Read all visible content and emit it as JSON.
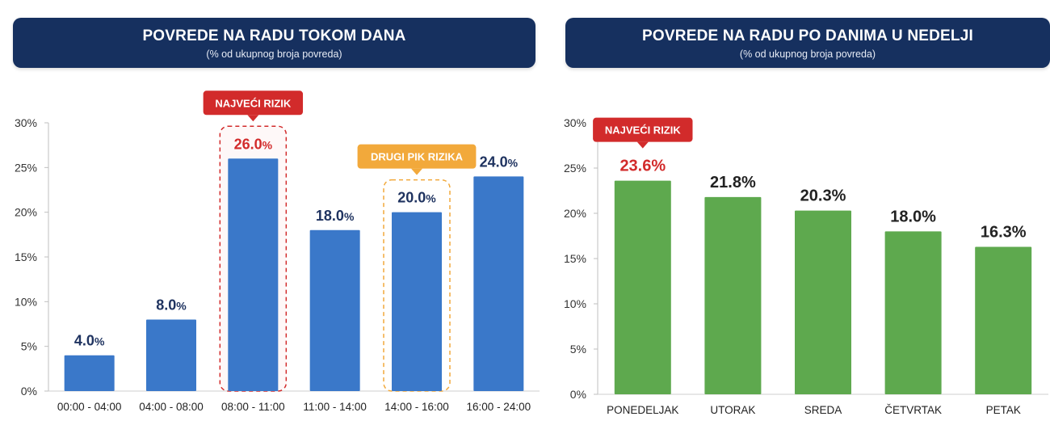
{
  "charts": [
    {
      "title": "POVREDE NA RADU TOKOM DANA",
      "subtitle": "(% od ukupnog broja povreda)",
      "highlight_label": "NAJVEĆI RIZIK",
      "secondary_label": "DRUGI PIK RIZIKA"
    },
    {
      "title": "POVREDE NA RADU PO DANIMA U NEDELJI",
      "subtitle": "(% od ukupnog broja povreda)",
      "highlight_label": "NAJVEĆI RIZIK"
    }
  ],
  "chart_data": [
    {
      "type": "bar",
      "title": "POVREDE NA RADU TOKOM DANA",
      "subtitle": "(% od ukupnog broja povreda)",
      "categories": [
        "00:00 - 04:00",
        "04:00 - 08:00",
        "08:00 - 11:00",
        "11:00 - 14:00",
        "14:00 - 16:00",
        "16:00 - 24:00"
      ],
      "values": [
        4.0,
        8.0,
        26.0,
        18.0,
        20.0,
        24.0
      ],
      "value_labels": [
        "4.0",
        "8.0",
        "26.0",
        "18.0",
        "20.0",
        "24.0"
      ],
      "value_suffix": "%",
      "yticks": [
        "0%",
        "5%",
        "10%",
        "15%",
        "20%",
        "25%",
        "30%"
      ],
      "ylim": [
        0,
        30
      ],
      "grid": false,
      "bar_color": "#3a78c9",
      "value_color": "#1f3360",
      "highlight_index": 2,
      "highlight_color": "#d22b2b",
      "secondary_index": 4,
      "secondary_color": "#f2a93b"
    },
    {
      "type": "bar",
      "title": "POVREDE NA RADU PO DANIMA U NEDELJI",
      "subtitle": "(% od ukupnog broja povreda)",
      "categories": [
        "PONEDELJAK",
        "UTORAK",
        "SREDA",
        "ČETVRTAK",
        "PETAK"
      ],
      "values": [
        23.6,
        21.8,
        20.3,
        18.0,
        16.3
      ],
      "value_labels": [
        "23.6%",
        "21.8%",
        "20.3%",
        "18.0%",
        "16.3%"
      ],
      "value_suffix": "",
      "yticks": [
        "0%",
        "5%",
        "10%",
        "15%",
        "20%",
        "25%",
        "30%"
      ],
      "ylim": [
        0,
        30
      ],
      "grid": false,
      "bar_color": "#5ea94e",
      "value_color": "#222222",
      "highlight_index": 0,
      "highlight_color": "#d22b2b"
    }
  ]
}
